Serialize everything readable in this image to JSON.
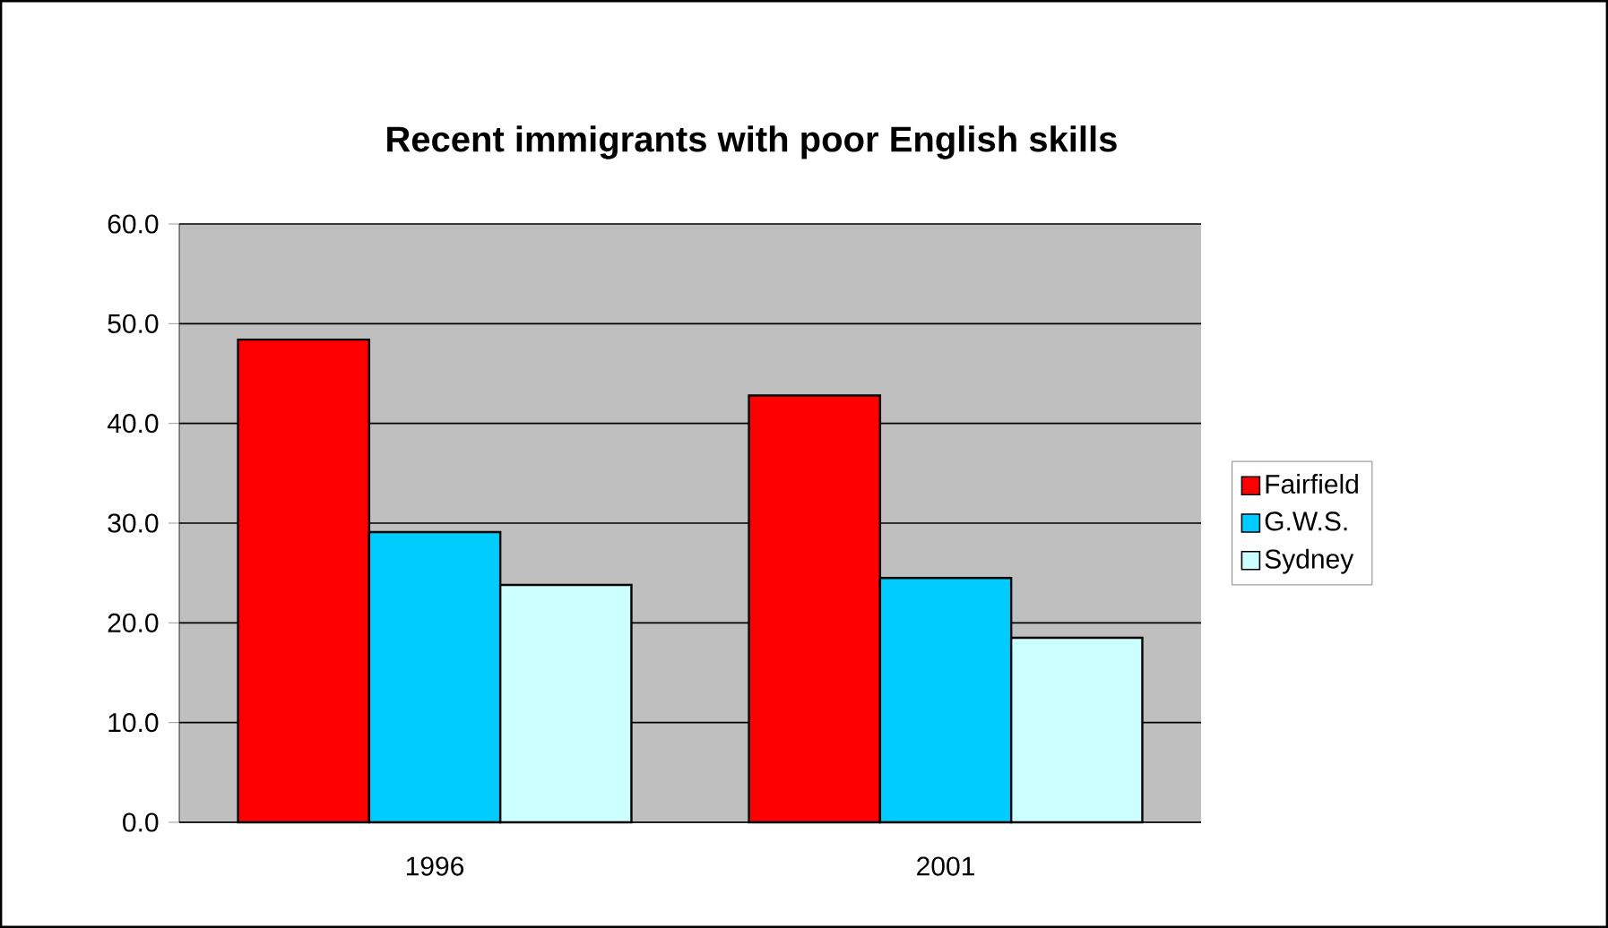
{
  "chart_data": {
    "type": "bar",
    "title": "Recent immigrants with poor English skills",
    "categories": [
      "1996",
      "2001"
    ],
    "series": [
      {
        "name": "Fairfield",
        "color": "#ff0000",
        "values": [
          48.4,
          42.8
        ]
      },
      {
        "name": "G.W.S.",
        "color": "#00ccff",
        "values": [
          29.1,
          24.5
        ]
      },
      {
        "name": "Sydney",
        "color": "#ccffff",
        "values": [
          23.8,
          18.5
        ]
      }
    ],
    "ylim": [
      0,
      60
    ],
    "yticks": [
      {
        "value": 0,
        "label": "0.0"
      },
      {
        "value": 10,
        "label": "10.0"
      },
      {
        "value": 20,
        "label": "20.0"
      },
      {
        "value": 30,
        "label": "30.0"
      },
      {
        "value": 40,
        "label": "40.0"
      },
      {
        "value": 50,
        "label": "50.0"
      },
      {
        "value": 60,
        "label": "60.0"
      }
    ],
    "grid": "y",
    "legend": "right"
  }
}
